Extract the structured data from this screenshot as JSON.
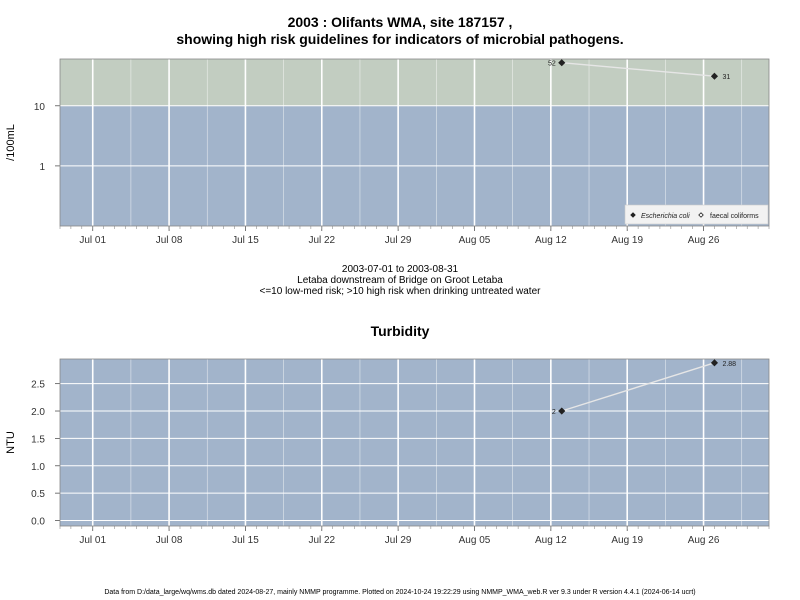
{
  "header": {
    "title_line1": "2003 : Olifants WMA, site 187157 ,",
    "title_line2": "showing high risk guidelines for indicators of microbial pathogens."
  },
  "micro_caption": {
    "line1": "2003-07-01 to 2003-08-31",
    "line2": "Letaba downstream of Bridge on Groot Letaba",
    "line3": "<=10 low-med risk; >10 high risk when drinking untreated water"
  },
  "turbidity_title": "Turbidity",
  "footer": "Data from D:/data_large/wq/wms.db dated 2024-08-27, mainly NMMP programme. Plotted on 2024-10-24 19:22:29 using NMMP_WMA_web.R ver 9.3 under R version 4.4.1 (2024-06-14 ucrt)",
  "colors": {
    "low_band": "#a2b4cb",
    "high_band": "#c2cdc1",
    "grid": "#ffffff",
    "series_line": "#e6e6e6",
    "marker": "#222222"
  },
  "chart_data": [
    {
      "type": "line",
      "title": "",
      "xlabel": "",
      "ylabel": "/100mL",
      "y_scale": "log",
      "x_start": "2003-06-28",
      "x_end": "2003-09-01",
      "x_ticks": [
        "Jul 01",
        "Jul 08",
        "Jul 15",
        "Jul 22",
        "Jul 29",
        "Aug 05",
        "Aug 12",
        "Aug 19",
        "Aug 26"
      ],
      "y_ticks": [
        {
          "value": 1,
          "label": "1"
        },
        {
          "value": 10,
          "label": "10"
        }
      ],
      "ylim": [
        0.1,
        60
      ],
      "threshold": 10,
      "bands": [
        {
          "name": "low-med risk",
          "from": 0.1,
          "to": 10,
          "color": "#a2b4cb"
        },
        {
          "name": "high risk",
          "from": 10,
          "to": 60,
          "color": "#c2cdc1"
        }
      ],
      "series": [
        {
          "name": "Escherichia coli",
          "marker": "diamond",
          "points": [
            {
              "x": "2003-08-13",
              "y": 52,
              "label": "52"
            },
            {
              "x": "2003-08-27",
              "y": 31,
              "label": "31"
            }
          ]
        },
        {
          "name": "faecal coliforms",
          "marker": "open-diamond",
          "points": []
        }
      ],
      "legend": "bottom-right",
      "grid": true
    },
    {
      "type": "line",
      "title": "Turbidity",
      "xlabel": "",
      "ylabel": "NTU",
      "x_start": "2003-06-28",
      "x_end": "2003-09-01",
      "x_ticks": [
        "Jul 01",
        "Jul 08",
        "Jul 15",
        "Jul 22",
        "Jul 29",
        "Aug 05",
        "Aug 12",
        "Aug 19",
        "Aug 26"
      ],
      "y_ticks": [
        {
          "value": 0.0,
          "label": "0.0"
        },
        {
          "value": 0.5,
          "label": "0.5"
        },
        {
          "value": 1.0,
          "label": "1.0"
        },
        {
          "value": 1.5,
          "label": "1.5"
        },
        {
          "value": 2.0,
          "label": "2.0"
        },
        {
          "value": 2.5,
          "label": "2.5"
        }
      ],
      "ylim": [
        -0.1,
        2.95
      ],
      "series": [
        {
          "name": "",
          "marker": "diamond",
          "points": [
            {
              "x": "2003-08-13",
              "y": 2.0,
              "label": "2"
            },
            {
              "x": "2003-08-27",
              "y": 2.88,
              "label": "2.88"
            }
          ]
        }
      ],
      "grid": true
    }
  ]
}
